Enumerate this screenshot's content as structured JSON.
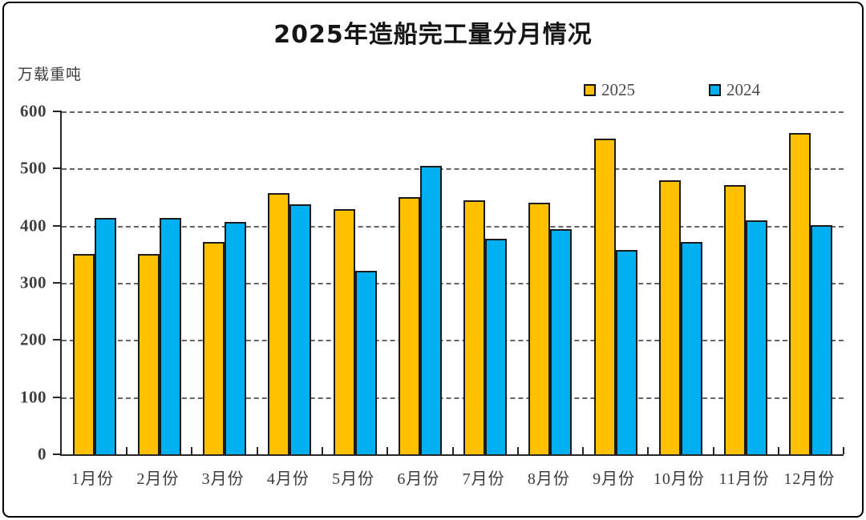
{
  "chart_data": {
    "type": "bar",
    "title": "2025年造船完工量分月情况",
    "unit_label": "万载重吨",
    "categories": [
      "1月份",
      "2月份",
      "3月份",
      "4月份",
      "5月份",
      "6月份",
      "7月份",
      "8月份",
      "9月份",
      "10月份",
      "11月份",
      "12月份"
    ],
    "series": [
      {
        "name": "2025",
        "color": "#FFC000",
        "values": [
          350,
          350,
          371,
          457,
          429,
          450,
          444,
          440,
          552,
          480,
          471,
          562
        ]
      },
      {
        "name": "2024",
        "color": "#00B0F0",
        "values": [
          413,
          413,
          407,
          437,
          321,
          505,
          377,
          394,
          357,
          372,
          410,
          401
        ]
      }
    ],
    "ylim": [
      0,
      600
    ],
    "ytick_step": 100,
    "ytick_labels": [
      "600",
      "500",
      "400",
      "300",
      "200",
      "100",
      "0"
    ],
    "grid": "dashed-horizontal",
    "legend_position": "top-right",
    "colors": {
      "bar_border": "#1b1b1b",
      "axis": "#262626",
      "gridline": "#575757",
      "title_text": "#151515",
      "label_text": "#3d3d3d"
    }
  }
}
